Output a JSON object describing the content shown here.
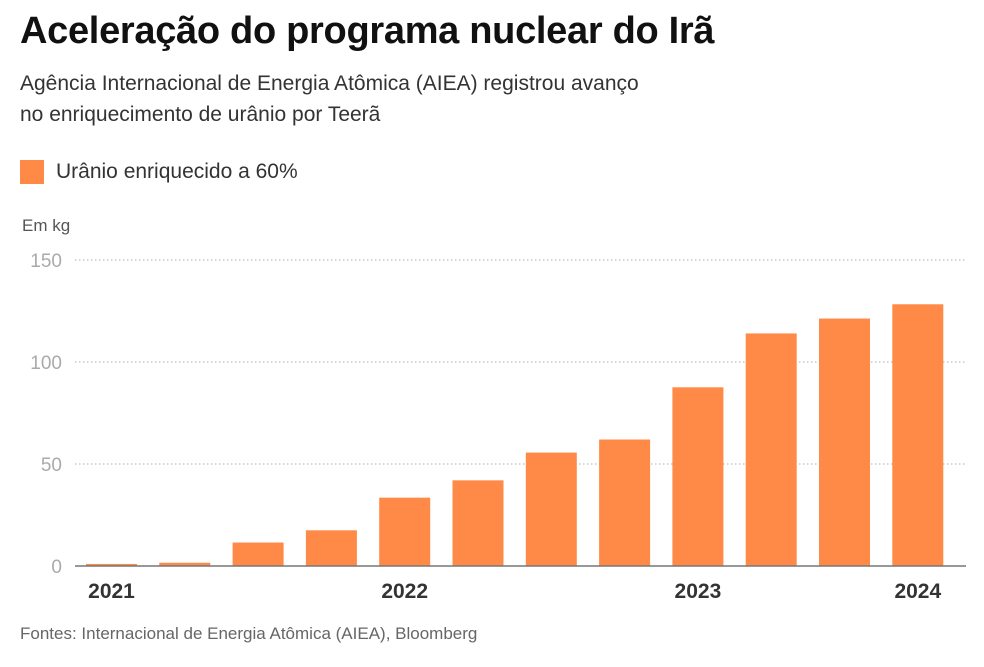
{
  "title": "Aceleração do programa nuclear do Irã",
  "subtitle_line1": "Agência Internacional de Energia Atômica (AIEA) registrou avanço",
  "subtitle_line2": "no enriquecimento de urânio por Teerã",
  "source": "Fontes: Internacional de Energia Atômica (AIEA), Bloomberg",
  "chart_data": {
    "type": "bar",
    "ylabel": "Em kg",
    "ylim": [
      0,
      150
    ],
    "yticks": [
      0,
      50,
      100,
      150
    ],
    "grid": true,
    "legend": "top-left",
    "series": [
      {
        "name": "Urânio enriquecido a 60%",
        "color": "#ff8a48",
        "values": [
          1,
          1.6,
          11.5,
          17.5,
          33.5,
          42,
          55.6,
          62,
          87.6,
          114,
          121.3,
          128.3
        ]
      }
    ],
    "xtick_labels": [
      {
        "bar_index": 0,
        "label": "2021"
      },
      {
        "bar_index": 4,
        "label": "2022"
      },
      {
        "bar_index": 8,
        "label": "2023"
      },
      {
        "bar_index": 11,
        "label": "2024"
      }
    ]
  }
}
